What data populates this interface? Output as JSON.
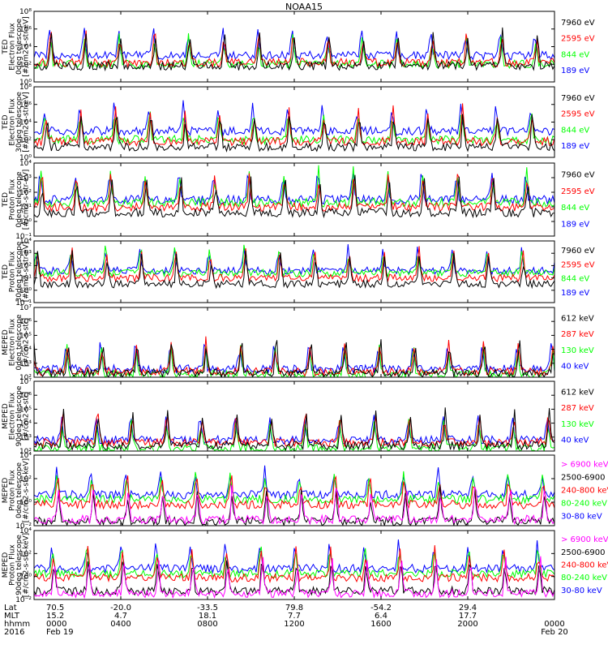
{
  "title": "NOAA15",
  "colors": {
    "blue": "#0000ff",
    "red": "#ff0000",
    "green": "#00ff00",
    "black": "#000000",
    "magenta": "#ff00ff"
  },
  "chart_data": [
    {
      "type": "line",
      "ylabel": [
        "TED",
        "Electron Flux",
        "0deg telescope",
        "[#/cm2-s-str-eV]"
      ],
      "yticks": [
        "10⁰",
        "10²",
        "10⁴",
        "10⁶",
        "10⁸"
      ],
      "ylim": [
        1,
        100000000
      ],
      "log": true,
      "series": [
        {
          "name": "7960 eV",
          "color": "#000000"
        },
        {
          "name": "2595 eV",
          "color": "#ff0000"
        },
        {
          "name": "844 eV",
          "color": "#00ff00"
        },
        {
          "name": "189 eV",
          "color": "#0000ff"
        }
      ],
      "baselines": [
        1.8,
        2.2,
        2.0,
        3.0
      ]
    },
    {
      "type": "line",
      "ylabel": [
        "TED",
        "Electron Flux",
        "30deg telescope",
        "[#/cm2-s-str-eV]"
      ],
      "yticks": [
        "10⁰",
        "10²",
        "10⁴",
        "10⁶",
        "10⁸"
      ],
      "ylim": [
        1,
        100000000
      ],
      "log": true,
      "series": [
        {
          "name": "7960 eV",
          "color": "#000000"
        },
        {
          "name": "2595 eV",
          "color": "#ff0000"
        },
        {
          "name": "844 eV",
          "color": "#00ff00"
        },
        {
          "name": "189 eV",
          "color": "#0000ff"
        }
      ],
      "baselines": [
        1.2,
        1.8,
        2.0,
        3.0
      ]
    },
    {
      "type": "line",
      "ylabel": [
        "TED",
        "Proton Flux",
        "0deg telescope",
        "[#/cm2-s-str-eV]"
      ],
      "yticks": [
        "10⁻¹",
        "10⁰",
        "10¹",
        "10²",
        "10³",
        "10⁴"
      ],
      "ylim": [
        0.1,
        10000
      ],
      "log": true,
      "series": [
        {
          "name": "7960 eV",
          "color": "#000000"
        },
        {
          "name": "2595 eV",
          "color": "#ff0000"
        },
        {
          "name": "844 eV",
          "color": "#00ff00"
        },
        {
          "name": "189 eV",
          "color": "#0000ff"
        }
      ],
      "baselines": [
        0.6,
        1.0,
        1.3,
        1.5
      ]
    },
    {
      "type": "line",
      "ylabel": [
        "TED",
        "Proton Flux",
        "30deg telescope",
        "[#/cm2-s-str-eV]"
      ],
      "yticks": [
        "10⁻¹",
        "10⁰",
        "10¹",
        "10²",
        "10³",
        "10⁴"
      ],
      "ylim": [
        0.1,
        10000
      ],
      "log": true,
      "series": [
        {
          "name": "7960 eV",
          "color": "#000000"
        },
        {
          "name": "2595 eV",
          "color": "#ff0000"
        },
        {
          "name": "844 eV",
          "color": "#00ff00"
        },
        {
          "name": "189 eV",
          "color": "#0000ff"
        }
      ],
      "baselines": [
        0.5,
        1.0,
        1.4,
        1.6
      ]
    },
    {
      "type": "line",
      "ylabel": [
        "MEPED",
        "Electron Flux",
        "0deg telescope",
        "[#/cm2-s-str]"
      ],
      "yticks": [
        "10²",
        "10³",
        "10⁴",
        "10⁵",
        "10⁶",
        "10⁷"
      ],
      "ylim": [
        100,
        10000000
      ],
      "log": true,
      "series": [
        {
          "name": "612 keV",
          "color": "#000000"
        },
        {
          "name": "287 keV",
          "color": "#ff0000"
        },
        {
          "name": "130 keV",
          "color": "#00ff00"
        },
        {
          "name": "40 keV",
          "color": "#0000ff"
        }
      ],
      "baselines": [
        2.3,
        2.4,
        2.2,
        2.6
      ]
    },
    {
      "type": "line",
      "ylabel": [
        "MEPED",
        "Electron Flux",
        "90deg telescope",
        "[#/cm2-s-str]"
      ],
      "yticks": [
        "10²",
        "10³",
        "10⁴",
        "10⁵",
        "10⁶",
        "10⁷"
      ],
      "ylim": [
        100,
        10000000
      ],
      "log": true,
      "series": [
        {
          "name": "612 keV",
          "color": "#000000"
        },
        {
          "name": "287 keV",
          "color": "#ff0000"
        },
        {
          "name": "130 keV",
          "color": "#00ff00"
        },
        {
          "name": "40 keV",
          "color": "#0000ff"
        }
      ],
      "baselines": [
        2.4,
        2.6,
        2.2,
        2.8
      ]
    },
    {
      "type": "line",
      "ylabel": [
        "MEPED",
        "Proton Flux",
        "0deg telescope",
        "[#/cm2-s-str-keV]"
      ],
      "yticks": [
        "10⁻²",
        "10⁰",
        "10²",
        "10⁴"
      ],
      "ylim": [
        0.001,
        100000
      ],
      "log": true,
      "series": [
        {
          "name": "> 6900 keV",
          "color": "#ff00ff"
        },
        {
          "name": "2500-6900",
          "color": "#000000"
        },
        {
          "name": "240-800 keV",
          "color": "#ff0000"
        },
        {
          "name": "80-240 keV",
          "color": "#00ff00"
        },
        {
          "name": "30-80 keV",
          "color": "#0000ff"
        }
      ],
      "baselines": [
        -2.3,
        -2.5,
        -0.6,
        0.0,
        0.5
      ]
    },
    {
      "type": "line",
      "ylabel": [
        "MEPED",
        "Proton Flux",
        "90deg telescope",
        "[#/cm2-s-str-keV]"
      ],
      "yticks": [
        "10⁻²",
        "10⁰",
        "10²",
        "10⁴"
      ],
      "ylim": [
        0.001,
        100000
      ],
      "log": true,
      "series": [
        {
          "name": "> 6900 keV",
          "color": "#ff00ff"
        },
        {
          "name": "2500-6900",
          "color": "#000000"
        },
        {
          "name": "240-800 keV",
          "color": "#ff0000"
        },
        {
          "name": "80-240 keV",
          "color": "#00ff00"
        },
        {
          "name": "30-80 keV",
          "color": "#0000ff"
        }
      ],
      "baselines": [
        -2.3,
        -2.0,
        -0.5,
        0.0,
        0.6
      ]
    }
  ],
  "xaxis": {
    "row_labels": [
      "Lat",
      "MLT",
      "hhmm",
      "2016"
    ],
    "columns": [
      {
        "lat": "70.5",
        "mlt": "15.2",
        "hhmm": "0000",
        "date": "Feb 19"
      },
      {
        "lat": "-20.0",
        "mlt": "4.7",
        "hhmm": "0400",
        "date": ""
      },
      {
        "lat": "-33.5",
        "mlt": "18.1",
        "hhmm": "0800",
        "date": ""
      },
      {
        "lat": "79.8",
        "mlt": "7.7",
        "hhmm": "1200",
        "date": ""
      },
      {
        "lat": "-54.2",
        "mlt": "6.4",
        "hhmm": "1600",
        "date": ""
      },
      {
        "lat": "29.4",
        "mlt": "17.7",
        "hhmm": "2000",
        "date": ""
      },
      {
        "lat": "",
        "mlt": "",
        "hhmm": "0000",
        "date": "Feb 20"
      }
    ]
  }
}
